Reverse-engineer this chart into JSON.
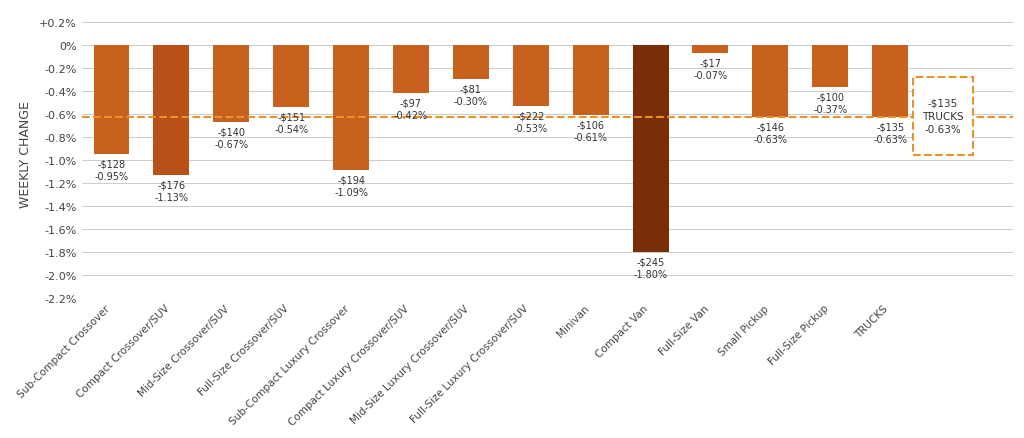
{
  "categories": [
    "Sub-Compact Crossover",
    "Compact Crossover/SUV",
    "Mid-Size Crossover/SUV",
    "Full-Size Crossover/SUV",
    "Sub-Compact Luxury Crossover",
    "Compact Luxury Crossover/SUV",
    "Mid-Size Luxury Crossover/SUV",
    "Full-Size Luxury Crossover/SUV",
    "Minivan",
    "Compact Van",
    "Full-Size Van",
    "Small Pickup",
    "Full-Size Pickup",
    "TRUCKS"
  ],
  "pct_values": [
    -0.95,
    -1.13,
    -0.67,
    -0.54,
    -1.09,
    -0.42,
    -0.3,
    -0.53,
    -0.61,
    -1.8,
    -0.07,
    -0.63,
    -0.37,
    -0.63
  ],
  "dollar_values": [
    128,
    176,
    140,
    151,
    194,
    97,
    81,
    222,
    106,
    245,
    17,
    146,
    100,
    135
  ],
  "bar_colors": [
    "#c8601e",
    "#b85018",
    "#c8601e",
    "#c8601e",
    "#c8601e",
    "#c8601e",
    "#c8601e",
    "#c8601e",
    "#c8601e",
    "#7a2e08",
    "#c8601e",
    "#c8601e",
    "#c8601e",
    "#c8601e"
  ],
  "dashed_line_y": -0.63,
  "dashed_line_color": "#e8922a",
  "trucks_box_color": "#e8922a",
  "ylabel": "WEEKLY CHANGE",
  "ylim": [
    -2.2,
    0.3
  ],
  "ytick_vals": [
    0.2,
    0.0,
    -0.2,
    -0.4,
    -0.6,
    -0.8,
    -1.0,
    -1.2,
    -1.4,
    -1.6,
    -1.8,
    -2.0,
    -2.2
  ],
  "background_color": "#ffffff",
  "grid_color": "#cccccc"
}
